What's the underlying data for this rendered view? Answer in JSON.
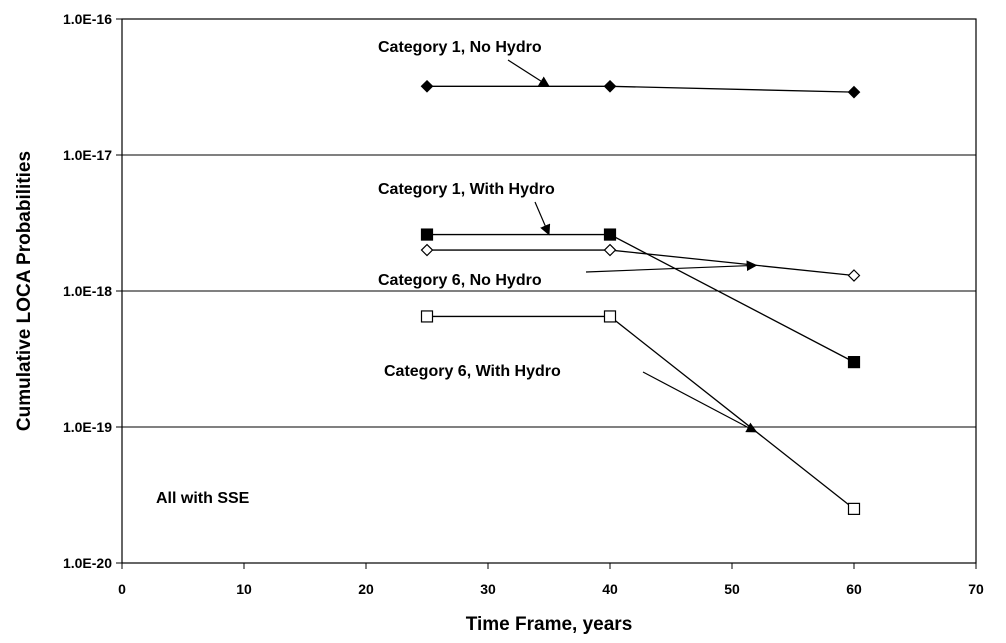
{
  "chart_data": {
    "type": "line",
    "xlabel": "Time Frame, years",
    "ylabel": "Cumulative LOCA Probabilities",
    "xlim": [
      0,
      70
    ],
    "ylim": [
      1e-20,
      1e-16
    ],
    "yscale": "log",
    "grid": "horizontal",
    "x_ticks": [
      "0",
      "10",
      "20",
      "30",
      "40",
      "50",
      "60",
      "70"
    ],
    "y_ticks": [
      "1.0E-16",
      "1.0E-17",
      "1.0E-18",
      "1.0E-19",
      "1.0E-20"
    ],
    "series": [
      {
        "name": "Category 1, No Hydro",
        "marker": "filled-diamond",
        "x": [
          25,
          40,
          60
        ],
        "y": [
          3.2e-17,
          3.2e-17,
          2.9e-17
        ]
      },
      {
        "name": "Category 1, With Hydro",
        "marker": "filled-square",
        "x": [
          25,
          40,
          60
        ],
        "y": [
          2.6e-18,
          2.6e-18,
          3e-19
        ]
      },
      {
        "name": "Category 6, No Hydro",
        "marker": "open-diamond",
        "x": [
          25,
          40,
          60
        ],
        "y": [
          2e-18,
          2e-18,
          1.3e-18
        ]
      },
      {
        "name": "Category 6, With Hydro",
        "marker": "open-square",
        "x": [
          25,
          40,
          60
        ],
        "y": [
          6.5e-19,
          6.5e-19,
          2.5e-20
        ]
      }
    ],
    "annotations": [
      {
        "text": "Category 1, No Hydro",
        "target_series": 0,
        "target_x": 35
      },
      {
        "text": "Category 1, With Hydro",
        "target_series": 1,
        "target_x": 35
      },
      {
        "text": "Category 6, No Hydro",
        "target_series": 2,
        "target_x": 52
      },
      {
        "text": "Category 6, With Hydro",
        "target_series": 3,
        "target_x": 52
      },
      {
        "text": "All with SSE"
      }
    ]
  }
}
